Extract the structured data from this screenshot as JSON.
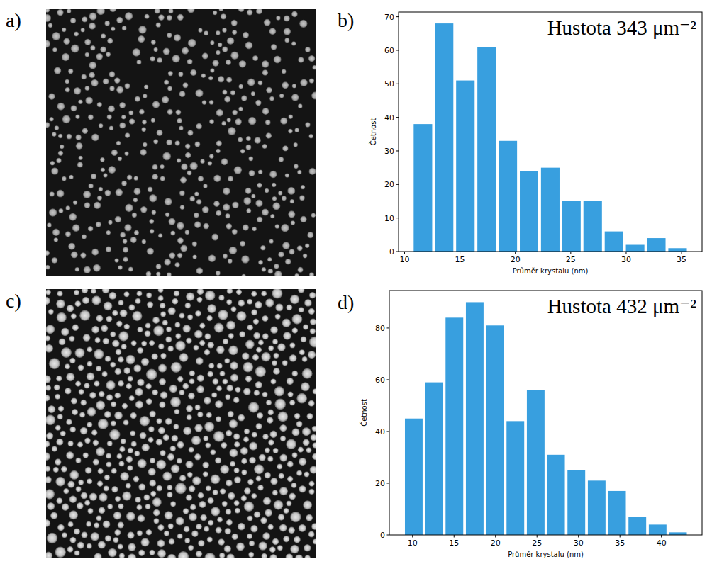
{
  "images": [
    {
      "letter": "a)"
    },
    {
      "letter": "c)"
    }
  ],
  "chart_data": [
    {
      "type": "histogram",
      "letter": "b)",
      "title": "Hustota 343 μm⁻²",
      "x_label": "Průměr krystalu (nm)",
      "y_label": "Četnost",
      "bins": [
        10.7,
        12.62,
        14.53,
        16.45,
        18.36,
        20.28,
        22.19,
        24.11,
        26.02,
        27.94,
        29.85,
        31.77,
        33.68,
        35.6
      ],
      "values": [
        38,
        68,
        51,
        61,
        33,
        24,
        25,
        15,
        15,
        6,
        2,
        4,
        1
      ],
      "color": "#389fdf",
      "xlim": [
        9.46,
        36.85
      ],
      "xticks": [
        10,
        15,
        20,
        25,
        30,
        35
      ],
      "ylim": [
        0,
        71.4
      ],
      "yticks": [
        0,
        10,
        20,
        30,
        40,
        50,
        60,
        70
      ]
    },
    {
      "type": "histogram",
      "letter": "d)",
      "title": "Hustota 432 μm⁻²",
      "x_label": "Průměr krystalu (nm)",
      "y_label": "Četnost",
      "bins": [
        8.92,
        11.37,
        13.82,
        16.27,
        18.72,
        21.17,
        23.62,
        26.07,
        28.52,
        30.97,
        33.42,
        35.87,
        38.32,
        40.77,
        43.22
      ],
      "values": [
        45,
        59,
        84,
        90,
        81,
        44,
        56,
        31,
        25,
        21,
        17,
        7,
        4,
        1
      ],
      "color": "#389fdf",
      "xlim": [
        7.2,
        44.9
      ],
      "xticks": [
        10,
        15,
        20,
        25,
        30,
        35,
        40
      ],
      "ylim": [
        0,
        94.5
      ],
      "yticks": [
        0,
        20,
        40,
        60,
        80
      ]
    }
  ]
}
